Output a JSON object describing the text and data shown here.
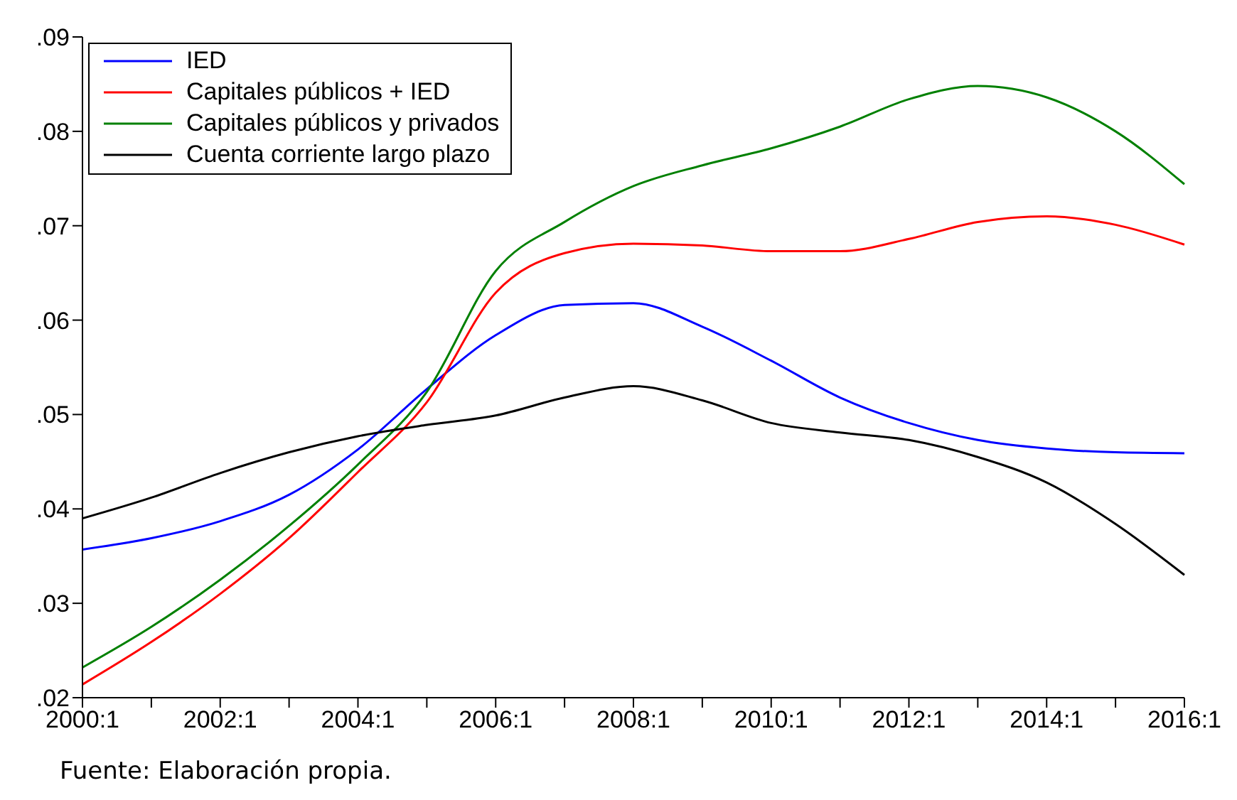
{
  "chart_data": {
    "type": "line",
    "categories": [
      "2000:1",
      null,
      "2002:1",
      null,
      "2004:1",
      null,
      "2006:1",
      null,
      "2008:1",
      null,
      "2010:1",
      null,
      "2012:1",
      null,
      "2014:1",
      null,
      "2016:1"
    ],
    "series": [
      {
        "name": "IED",
        "color": "#0000ff",
        "values": [
          0.0357,
          0.0369,
          0.0387,
          0.0415,
          0.0463,
          0.0527,
          0.0584,
          0.0616,
          0.0618,
          0.0593,
          0.0557,
          0.0518,
          0.0491,
          0.0473,
          0.0464,
          0.046,
          0.0459
        ]
      },
      {
        "name": "Capitales públicos + IED",
        "color": "#ff0000",
        "values": [
          0.0214,
          0.0259,
          0.031,
          0.0369,
          0.0439,
          0.0513,
          0.0629,
          0.0671,
          0.0681,
          0.0679,
          0.0673,
          0.0673,
          0.0686,
          0.0704,
          0.071,
          0.0701,
          0.068
        ]
      },
      {
        "name": "Capitales públicos y privados",
        "color": "#008000",
        "values": [
          0.0232,
          0.0275,
          0.0325,
          0.0382,
          0.0447,
          0.0524,
          0.0652,
          0.0704,
          0.0742,
          0.0764,
          0.0782,
          0.0805,
          0.0834,
          0.0848,
          0.0836,
          0.08,
          0.0744
        ]
      },
      {
        "name": "Cuenta corriente largo plazo",
        "color": "#000000",
        "values": [
          0.039,
          0.0412,
          0.0438,
          0.046,
          0.0477,
          0.0489,
          0.0499,
          0.0518,
          0.053,
          0.0515,
          0.0491,
          0.0481,
          0.0473,
          0.0455,
          0.0428,
          0.0384,
          0.033
        ]
      }
    ],
    "ylim": [
      0.02,
      0.09
    ],
    "yticks": [
      {
        "value": 0.02,
        "label": ".02"
      },
      {
        "value": 0.03,
        "label": ".03"
      },
      {
        "value": 0.04,
        "label": ".04"
      },
      {
        "value": 0.05,
        "label": ".05"
      },
      {
        "value": 0.06,
        "label": ".06"
      },
      {
        "value": 0.07,
        "label": ".07"
      },
      {
        "value": 0.08,
        "label": ".08"
      },
      {
        "value": 0.09,
        "label": ".09"
      }
    ],
    "grid": false,
    "legend": "top left",
    "marker": "none",
    "line_style": "solid",
    "annotations": [
      "Fuente: Elaboración propia."
    ]
  }
}
